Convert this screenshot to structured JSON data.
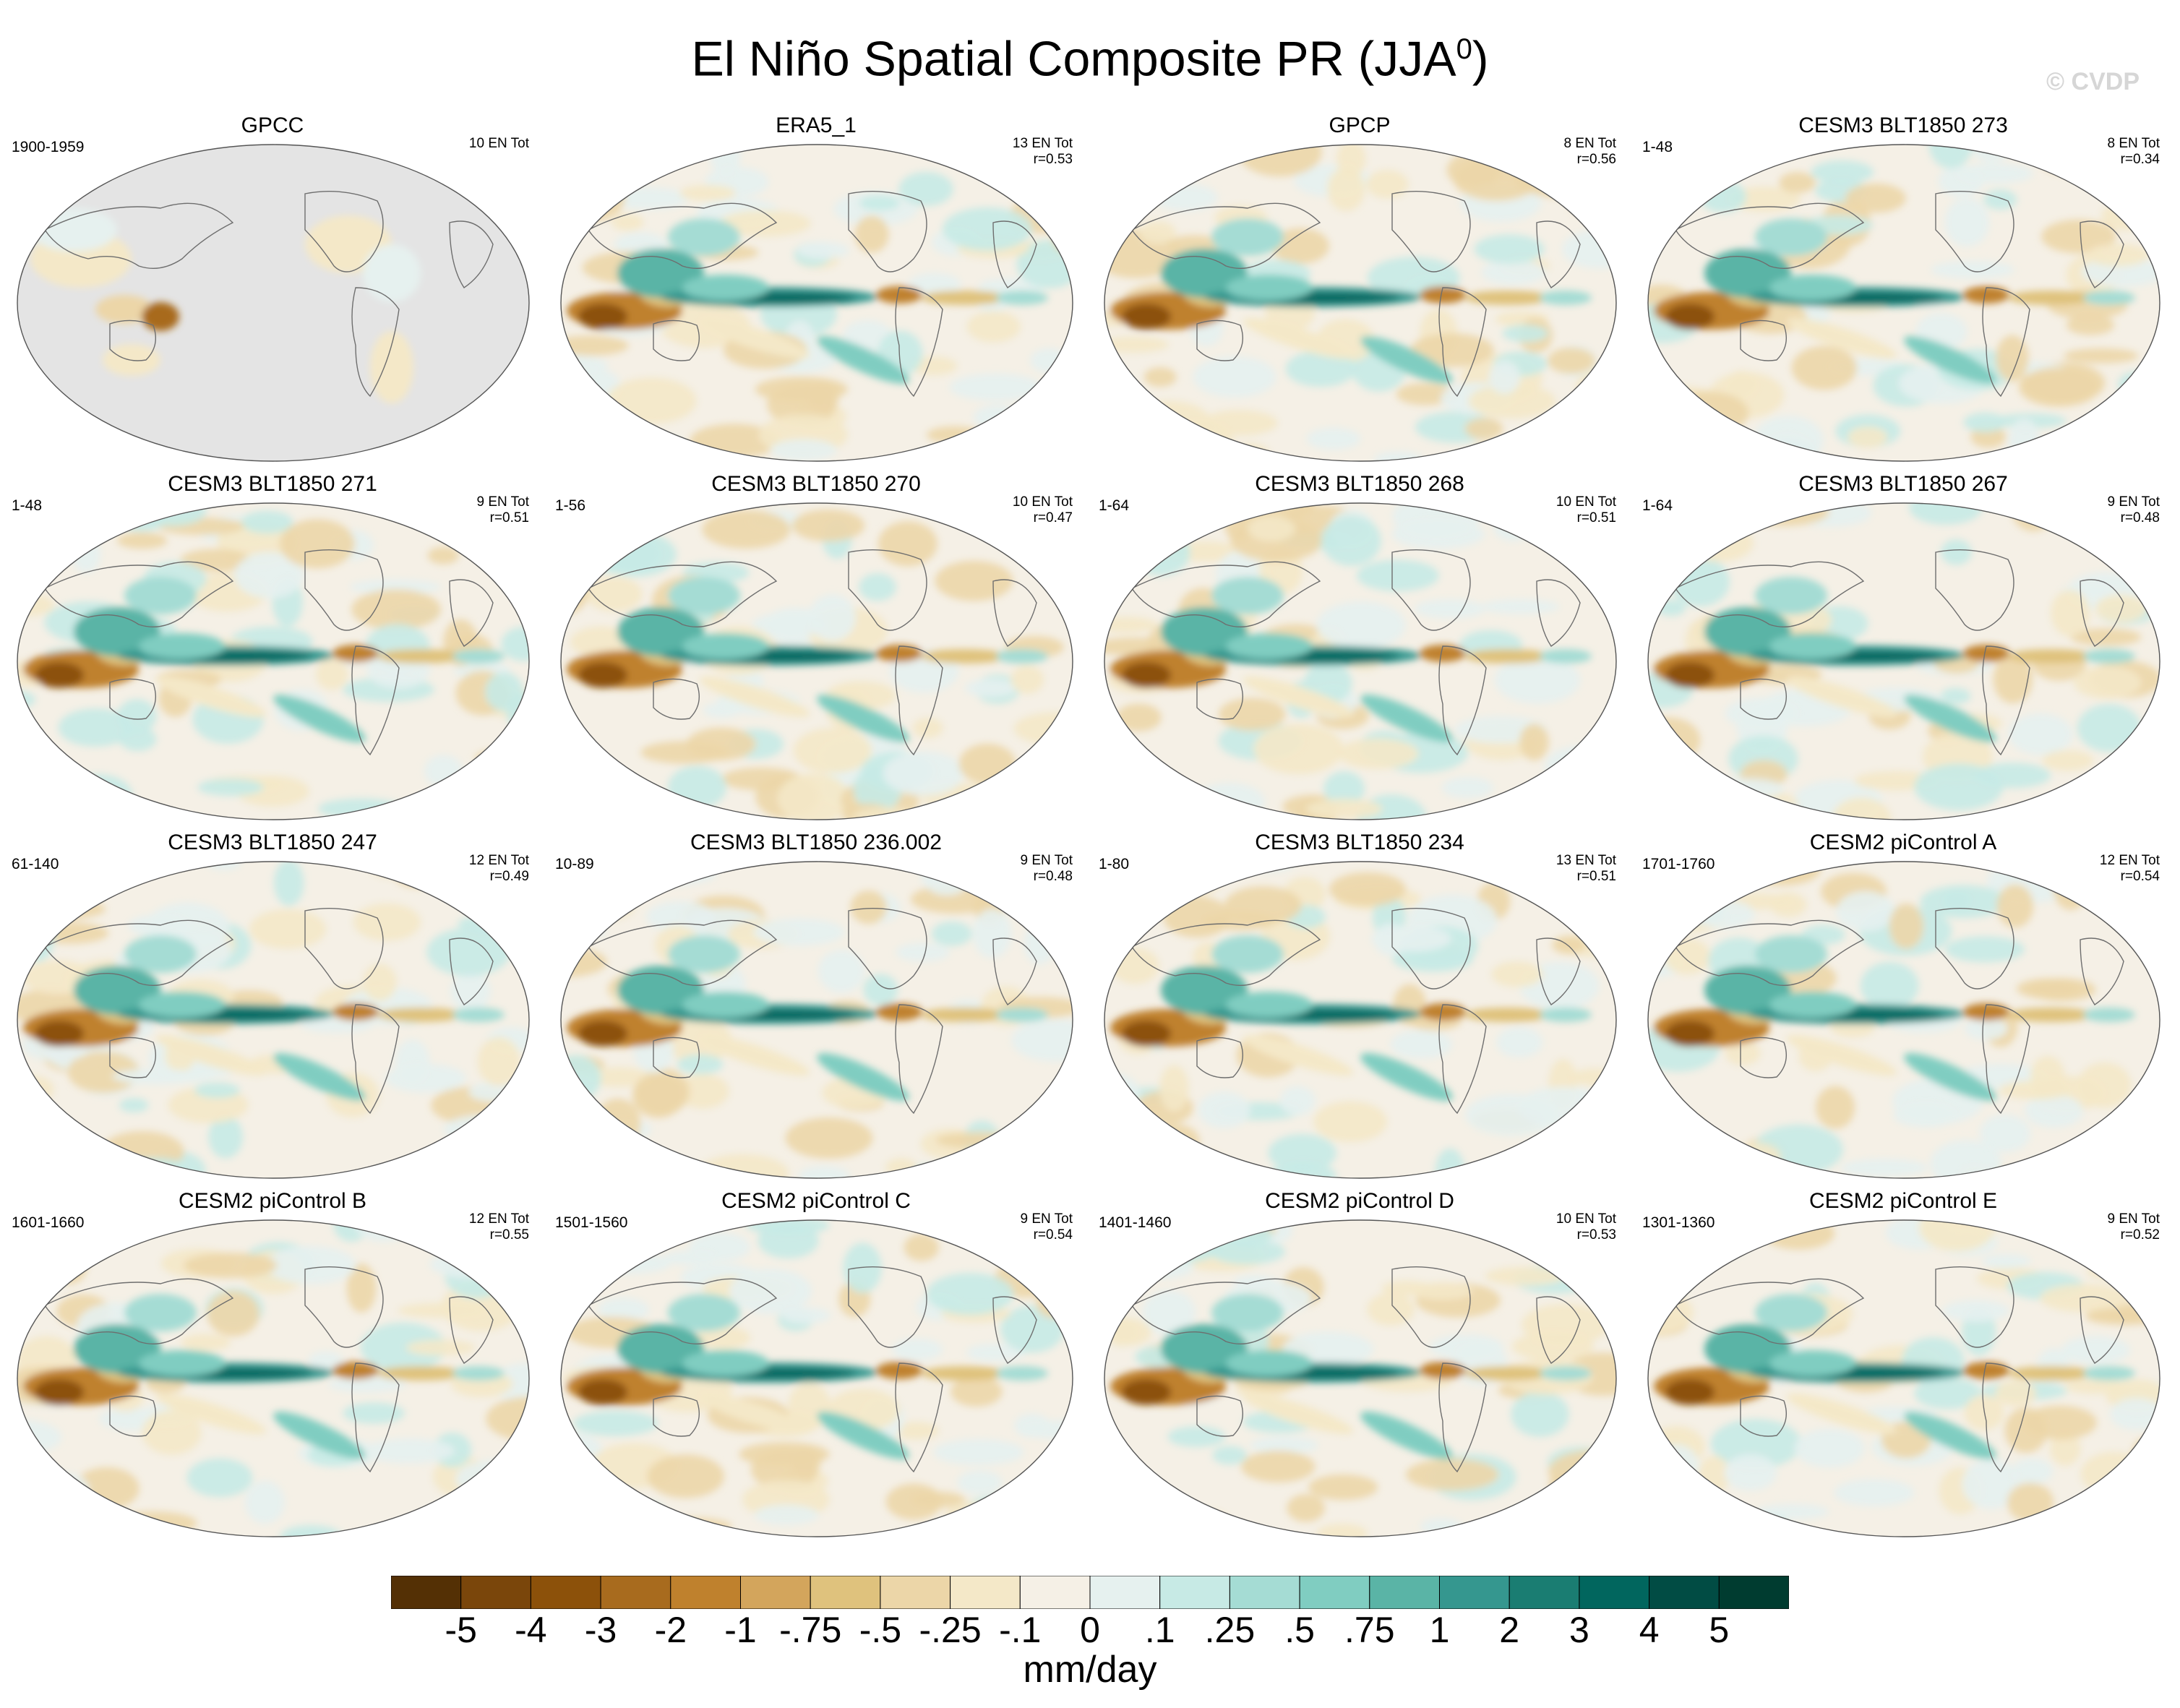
{
  "title": "El Niño Spatial Composite PR (JJA",
  "title_superscript": "0",
  "title_close": ")",
  "watermark": "© CVDP",
  "chart_data": {
    "type": "heatmap",
    "title": "El Niño Spatial Composite PR (JJA0)",
    "variable": "precipitation anomaly",
    "units": "mm/day",
    "colorbar": {
      "levels": [
        "-5",
        "-4",
        "-3",
        "-2",
        "-1",
        "-.75",
        "-.5",
        "-.25",
        "-.1",
        "0",
        ".1",
        ".25",
        ".5",
        ".75",
        "1",
        "2",
        "3",
        "4",
        "5"
      ],
      "colors": [
        "#543005",
        "#7a460b",
        "#8c510a",
        "#a86b1e",
        "#bf812d",
        "#d3a55c",
        "#dfc27d",
        "#ecd6a8",
        "#f4e8c8",
        "#f5f0e6",
        "#e6f1ef",
        "#c7eae5",
        "#a5dcd4",
        "#80cdc1",
        "#5ab4a6",
        "#35978f",
        "#1a7d72",
        "#01665e",
        "#014c44",
        "#003c30"
      ]
    },
    "panels": [
      {
        "name": "GPCC",
        "period": "1900-1959",
        "events": "10 EN Tot",
        "r": "",
        "land_only": true
      },
      {
        "name": "ERA5_1",
        "period": "",
        "events": "13 EN Tot",
        "r": "r=0.53",
        "land_only": false
      },
      {
        "name": "GPCP",
        "period": "",
        "events": "8 EN Tot",
        "r": "r=0.56",
        "land_only": false
      },
      {
        "name": "CESM3 BLT1850 273",
        "period": "1-48",
        "events": "8 EN Tot",
        "r": "r=0.34",
        "land_only": false
      },
      {
        "name": "CESM3 BLT1850 271",
        "period": "1-48",
        "events": "9 EN Tot",
        "r": "r=0.51",
        "land_only": false
      },
      {
        "name": "CESM3 BLT1850 270",
        "period": "1-56",
        "events": "10 EN Tot",
        "r": "r=0.47",
        "land_only": false
      },
      {
        "name": "CESM3 BLT1850 268",
        "period": "1-64",
        "events": "10 EN Tot",
        "r": "r=0.51",
        "land_only": false
      },
      {
        "name": "CESM3 BLT1850 267",
        "period": "1-64",
        "events": "9 EN Tot",
        "r": "r=0.48",
        "land_only": false
      },
      {
        "name": "CESM3 BLT1850 247",
        "period": "61-140",
        "events": "12 EN Tot",
        "r": "r=0.49",
        "land_only": false
      },
      {
        "name": "CESM3 BLT1850 236.002",
        "period": "10-89",
        "events": "9 EN Tot",
        "r": "r=0.48",
        "land_only": false
      },
      {
        "name": "CESM3 BLT1850 234",
        "period": "1-80",
        "events": "13 EN Tot",
        "r": "r=0.51",
        "land_only": false
      },
      {
        "name": "CESM2 piControl A",
        "period": "1701-1760",
        "events": "12 EN Tot",
        "r": "r=0.54",
        "land_only": false
      },
      {
        "name": "CESM2 piControl B",
        "period": "1601-1660",
        "events": "12 EN Tot",
        "r": "r=0.55",
        "land_only": false
      },
      {
        "name": "CESM2 piControl C",
        "period": "1501-1560",
        "events": "9 EN Tot",
        "r": "r=0.54",
        "land_only": false
      },
      {
        "name": "CESM2 piControl D",
        "period": "1401-1460",
        "events": "10 EN Tot",
        "r": "r=0.53",
        "land_only": false
      },
      {
        "name": "CESM2 piControl E",
        "period": "1301-1360",
        "events": "9 EN Tot",
        "r": "r=0.52",
        "land_only": false
      }
    ]
  }
}
